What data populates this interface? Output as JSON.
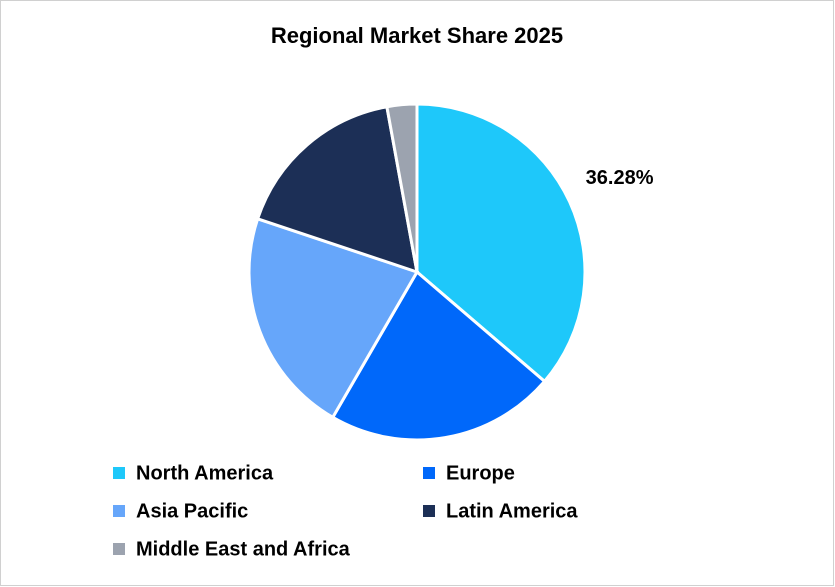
{
  "chart_data": {
    "type": "pie",
    "title": "Regional Market Share 2025",
    "categories": [
      "North America",
      "Europe",
      "Asia Pacific",
      "Latin America",
      "Middle East and Africa"
    ],
    "values": [
      36.28,
      22.08,
      21.77,
      17.0,
      2.87
    ],
    "value_labels": [
      "36.28%",
      null,
      null,
      null,
      null
    ],
    "colors": [
      "#1ec8fa",
      "#0068fa",
      "#66a6fa",
      "#1c2f56",
      "#9ca3af"
    ],
    "legend": "bottom"
  }
}
